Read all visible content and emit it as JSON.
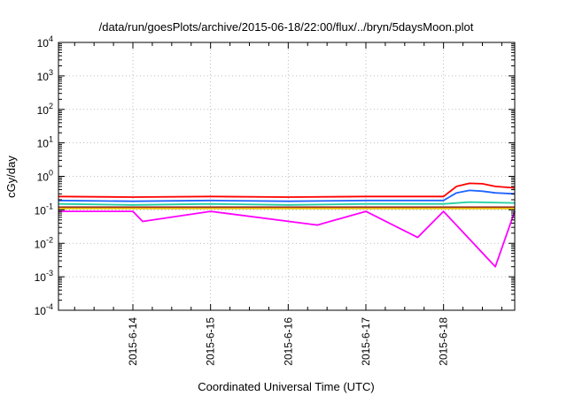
{
  "chart_data": {
    "type": "line",
    "title": "/data/run/goesPlots/archive/2015-06-18/22:00/flux/../bryn/5daysMoon.plot",
    "xlabel": "Coordinated Universal Time (UTC)",
    "ylabel": "cGy/day",
    "yscale": "log",
    "ylim": [
      0.0001,
      10000
    ],
    "xlim": [
      "2015-06-13 01:00",
      "2015-06-18 22:00"
    ],
    "grid": true,
    "x_ticks": [
      "2015-6-14",
      "2015-6-15",
      "2015-6-16",
      "2015-6-17",
      "2015-6-18"
    ],
    "y_ticks": [
      {
        "base": "10",
        "exp": "-4"
      },
      {
        "base": "10",
        "exp": "-3"
      },
      {
        "base": "10",
        "exp": "-2"
      },
      {
        "base": "10",
        "exp": "-1"
      },
      {
        "base": "10",
        "exp": "0"
      },
      {
        "base": "10",
        "exp": "1"
      },
      {
        "base": "10",
        "exp": "2"
      },
      {
        "base": "10",
        "exp": "3"
      },
      {
        "base": "10",
        "exp": "4"
      }
    ],
    "series": [
      {
        "color": "#ff0000",
        "x": [
          "2015-06-13 01:00",
          "2015-06-14 00:00",
          "2015-06-15 00:00",
          "2015-06-16 00:00",
          "2015-06-17 00:00",
          "2015-06-18 00:00",
          "2015-06-18 04:00",
          "2015-06-18 08:00",
          "2015-06-18 12:00",
          "2015-06-18 16:00",
          "2015-06-18 22:00"
        ],
        "y": [
          0.25,
          0.24,
          0.25,
          0.24,
          0.25,
          0.25,
          0.5,
          0.62,
          0.6,
          0.5,
          0.45
        ]
      },
      {
        "color": "#1e64ff",
        "x": [
          "2015-06-13 01:00",
          "2015-06-14 00:00",
          "2015-06-15 00:00",
          "2015-06-16 00:00",
          "2015-06-17 00:00",
          "2015-06-18 00:00",
          "2015-06-18 04:00",
          "2015-06-18 08:00",
          "2015-06-18 12:00",
          "2015-06-18 16:00",
          "2015-06-18 22:00"
        ],
        "y": [
          0.19,
          0.18,
          0.19,
          0.18,
          0.19,
          0.19,
          0.32,
          0.38,
          0.36,
          0.32,
          0.3
        ]
      },
      {
        "color": "#20d0a0",
        "x": [
          "2015-06-13 01:00",
          "2015-06-14 00:00",
          "2015-06-15 00:00",
          "2015-06-16 00:00",
          "2015-06-17 00:00",
          "2015-06-18 00:00",
          "2015-06-18 08:00",
          "2015-06-18 22:00"
        ],
        "y": [
          0.15,
          0.14,
          0.15,
          0.14,
          0.15,
          0.15,
          0.17,
          0.16
        ]
      },
      {
        "color": "#8b1a1a",
        "x": [
          "2015-06-13 01:00",
          "2015-06-14 00:00",
          "2015-06-15 00:00",
          "2015-06-16 00:00",
          "2015-06-17 00:00",
          "2015-06-18 00:00",
          "2015-06-18 22:00"
        ],
        "y": [
          0.12,
          0.12,
          0.12,
          0.12,
          0.12,
          0.12,
          0.12
        ]
      },
      {
        "color": "#e6b800",
        "x": [
          "2015-06-13 01:00",
          "2015-06-14 00:00",
          "2015-06-15 00:00",
          "2015-06-16 00:00",
          "2015-06-17 00:00",
          "2015-06-18 00:00",
          "2015-06-18 22:00"
        ],
        "y": [
          0.11,
          0.11,
          0.11,
          0.11,
          0.11,
          0.11,
          0.11
        ]
      },
      {
        "color": "#ff00ff",
        "x": [
          "2015-06-13 01:00",
          "2015-06-14 00:00",
          "2015-06-14 03:00",
          "2015-06-15 00:00",
          "2015-06-16 09:00",
          "2015-06-17 00:00",
          "2015-06-17 16:00",
          "2015-06-18 00:00",
          "2015-06-18 16:00",
          "2015-06-18 22:00"
        ],
        "y": [
          0.09,
          0.09,
          0.045,
          0.09,
          0.035,
          0.09,
          0.015,
          0.09,
          0.002,
          0.09
        ]
      }
    ]
  }
}
